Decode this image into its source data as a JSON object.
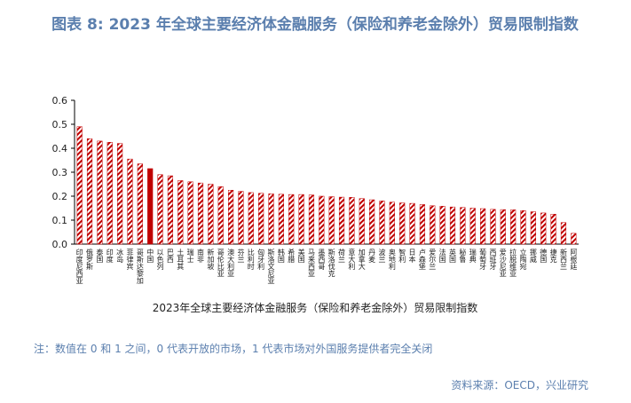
{
  "chart_data": {
    "type": "bar",
    "title": "图表 8:   2023 年全球主要经济体金融服务（保险和养老金除外）贸易限制指数",
    "x_label": "2023年全球主要经济体金融服务（保险和养老金除外）贸易限制指数",
    "note": "注：数值在 0 和 1 之间，0 代表开放的市场，1 代表市场对外国服务提供者完全关闭",
    "source": "资料来源：OECD，兴业研究",
    "categories": [
      "印度尼西亚",
      "俄罗斯",
      "泰国",
      "印度",
      "冰岛",
      "菲律宾",
      "哥斯达黎加",
      "中国",
      "以色列",
      "巴西",
      "土耳其",
      "瑞士",
      "南非",
      "新加坡",
      "哥伦比亚",
      "澳大利亚",
      "芬兰",
      "比利时",
      "匈牙利",
      "斯洛文尼亚",
      "韩国",
      "希腊",
      "美国",
      "马来西亚",
      "墨西哥",
      "斯洛伐克",
      "荷兰",
      "意大利",
      "加拿大",
      "丹麦",
      "波兰",
      "奥地利",
      "智利",
      "日本",
      "卢森堡",
      "爱尔兰",
      "法国",
      "英国",
      "秘鲁",
      "瑞典",
      "葡萄牙",
      "西班牙",
      "爱沙尼亚",
      "拉脱维亚",
      "立陶宛",
      "挪威",
      "德国",
      "捷克",
      "新西兰",
      "阿根廷"
    ],
    "values": [
      0.49,
      0.44,
      0.43,
      0.425,
      0.42,
      0.355,
      0.335,
      0.315,
      0.29,
      0.285,
      0.265,
      0.26,
      0.255,
      0.25,
      0.24,
      0.225,
      0.22,
      0.215,
      0.212,
      0.21,
      0.208,
      0.207,
      0.207,
      0.205,
      0.2,
      0.198,
      0.196,
      0.195,
      0.19,
      0.185,
      0.18,
      0.175,
      0.172,
      0.17,
      0.165,
      0.16,
      0.158,
      0.155,
      0.153,
      0.15,
      0.148,
      0.145,
      0.144,
      0.143,
      0.14,
      0.135,
      0.13,
      0.125,
      0.09,
      0.045
    ],
    "patterns": [
      "hatch",
      "hatch",
      "hatch",
      "hatch",
      "hatch",
      "hatch",
      "hatch",
      "solid",
      "hatch",
      "hatch",
      "hatch",
      "hatch",
      "hatch",
      "hatch",
      "hatch",
      "hatch",
      "hatch",
      "hatch",
      "hatch",
      "hatch",
      "hatch",
      "hatch",
      "hatch",
      "hatch",
      "hatch",
      "hatch",
      "hatch",
      "hatch",
      "hatch",
      "hatch",
      "hatch",
      "hatch",
      "hatch",
      "hatch",
      "hatch",
      "hatch",
      "hatch",
      "hatch",
      "hatch",
      "hatch",
      "hatch",
      "hatch",
      "hatch",
      "hatch",
      "hatch",
      "hatch",
      "hatch",
      "hatch",
      "hatch",
      "hatch"
    ],
    "color": "#c00000",
    "ylim": [
      0,
      0.6
    ],
    "yticks": [
      {
        "value": 0,
        "label": "0.0"
      },
      0.1,
      0.2,
      0.3,
      0.4,
      0.5,
      0.6
    ],
    "grid": false
  }
}
